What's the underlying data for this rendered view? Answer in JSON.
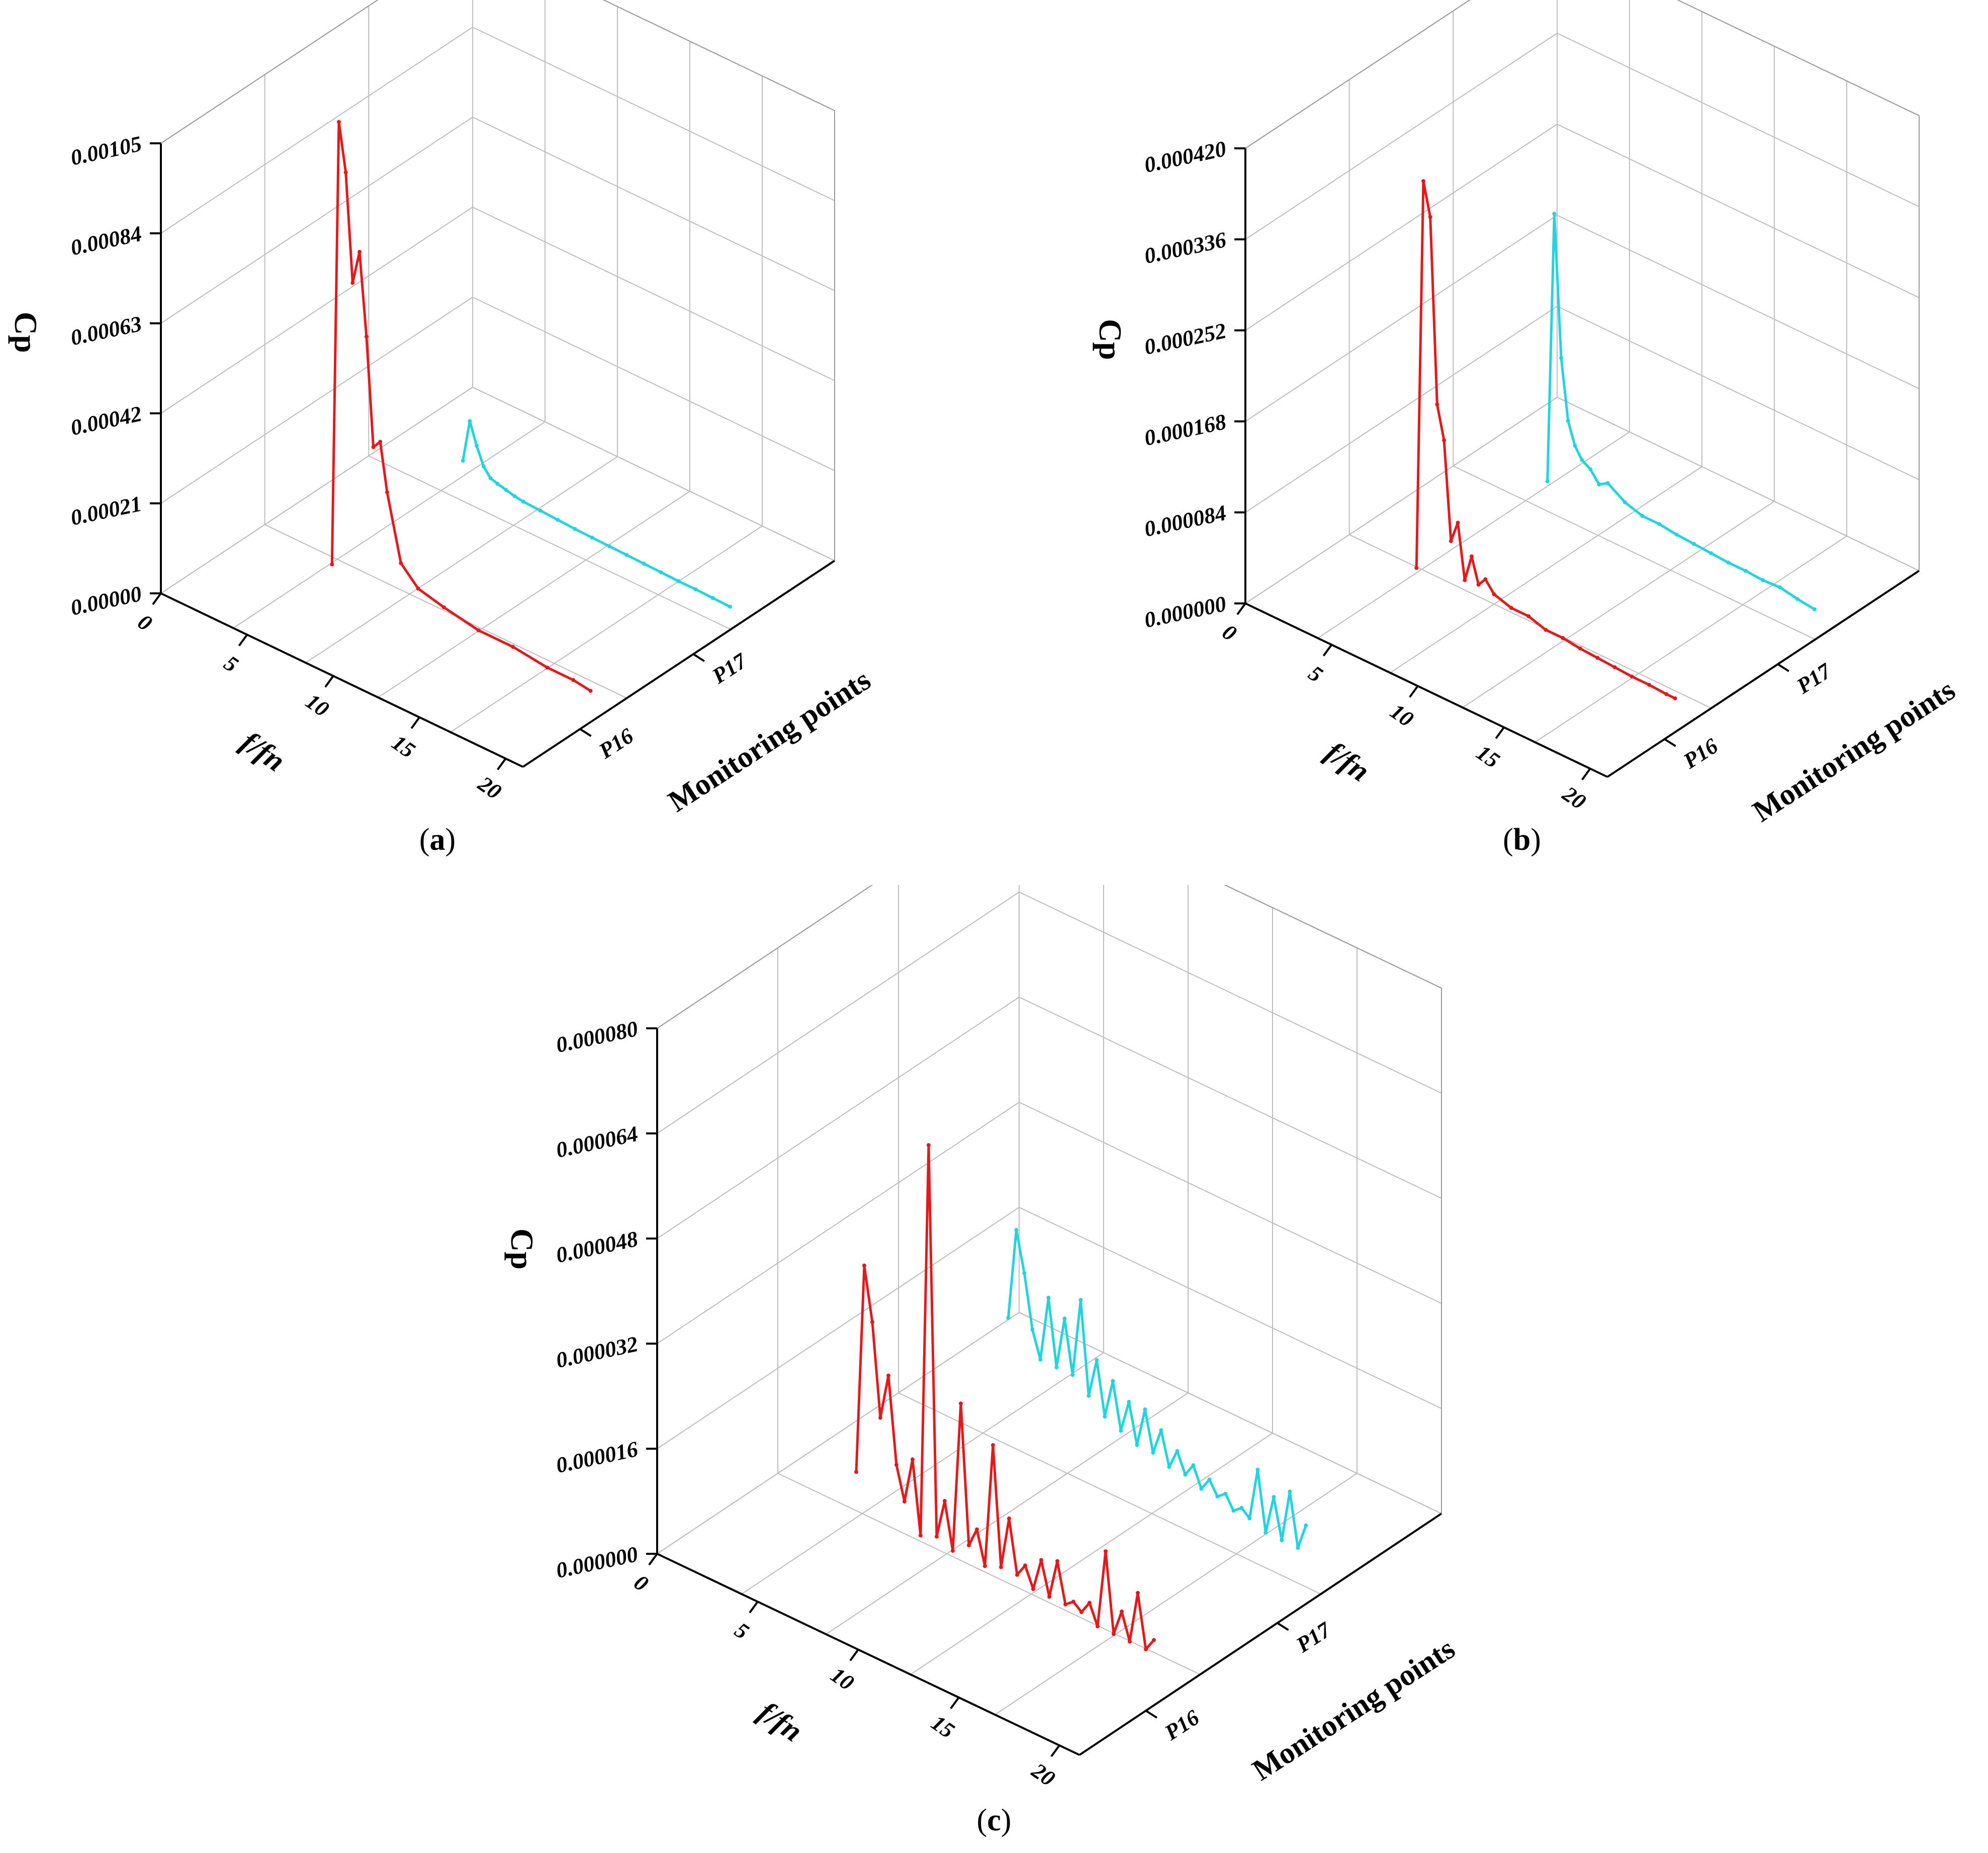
{
  "figure": {
    "panels": [
      {
        "id": "a",
        "caption": "a"
      },
      {
        "id": "b",
        "caption": "b"
      },
      {
        "id": "c",
        "caption": "c"
      }
    ],
    "paren_open": "(",
    "paren_close": ")"
  },
  "colors": {
    "P16": "#e31a1c",
    "P17": "#22d3e0",
    "grid": "#bdbdbd",
    "axis": "#000000"
  },
  "chart_data": [
    {
      "panel": "a",
      "type": "line",
      "title": "",
      "xlabel": "f/fn",
      "ylabel": "Cp",
      "zlabel": "Monitoring points",
      "categories": [
        "P16",
        "P17"
      ],
      "x_ticks": [
        "0",
        "5",
        "10",
        "15",
        "20"
      ],
      "y_ticks": [
        "0.00000",
        "0.00021",
        "0.00042",
        "0.00063",
        "0.00084",
        "0.00105"
      ],
      "xlim": [
        0,
        21
      ],
      "ylim": [
        0,
        0.00105
      ],
      "series": [
        {
          "name": "P16",
          "x": [
            4.5,
            4.9,
            5.3,
            5.7,
            6.1,
            6.5,
            6.9,
            7.3,
            7.7,
            8.5,
            9.5,
            11,
            13,
            15,
            17,
            18.5,
            19.5
          ],
          "values": [
            1e-05,
            0.00105,
            0.00094,
            0.00069,
            0.00077,
            0.00058,
            0.00033,
            0.00035,
            0.00024,
            9e-05,
            5e-05,
            3.5e-05,
            2e-05,
            2e-05,
            1e-05,
            1e-05,
            4e-06
          ]
        },
        {
          "name": "P17",
          "x": [
            4.5,
            4.9,
            5.3,
            5.7,
            6.1,
            6.5,
            7,
            7.5,
            8,
            9,
            10,
            11,
            12,
            13,
            14,
            15,
            16,
            17,
            18,
            19,
            20
          ],
          "values": [
            5e-05,
            0.00015,
            0.0001,
            6e-05,
            4e-05,
            3.5e-05,
            3e-05,
            2.5e-05,
            2.2e-05,
            2e-05,
            1.8e-05,
            1.6e-05,
            1.5e-05,
            1.4e-05,
            1.3e-05,
            1.2e-05,
            1.1e-05,
            1e-05,
            1e-05,
            9e-06,
            8e-06
          ]
        }
      ]
    },
    {
      "panel": "b",
      "type": "line",
      "title": "",
      "xlabel": "f/fn",
      "ylabel": "Cp",
      "zlabel": "Monitoring points",
      "categories": [
        "P16",
        "P17"
      ],
      "x_ticks": [
        "0",
        "5",
        "10",
        "15",
        "20"
      ],
      "y_ticks": [
        "0.000000",
        "0.000084",
        "0.000168",
        "0.000252",
        "0.000336",
        "0.000420"
      ],
      "xlim": [
        0,
        21
      ],
      "ylim": [
        0,
        0.00042
      ],
      "series": [
        {
          "name": "P16",
          "x": [
            4.5,
            4.9,
            5.3,
            5.7,
            6.1,
            6.5,
            6.9,
            7.3,
            7.7,
            8.1,
            8.5,
            9,
            10,
            11,
            12,
            13,
            14,
            15,
            16,
            17,
            18,
            19,
            19.5
          ],
          "values": [
            1e-05,
            0.00037,
            0.00034,
            0.00017,
            0.00014,
            5e-05,
            7e-05,
            2e-05,
            4.5e-05,
            2.2e-05,
            3e-05,
            2e-05,
            1.5e-05,
            1.5e-05,
            1e-05,
            1e-05,
            8e-06,
            7e-06,
            6e-06,
            5e-06,
            5e-06,
            4e-06,
            4e-06
          ]
        },
        {
          "name": "P17",
          "x": [
            4.5,
            4.9,
            5.3,
            5.7,
            6.1,
            6.5,
            7,
            7.5,
            8,
            9,
            10,
            11,
            12,
            13,
            14,
            15,
            16,
            17,
            18,
            19,
            20
          ],
          "values": [
            1e-05,
            0.00026,
            0.00013,
            7.5e-05,
            5.5e-05,
            4.5e-05,
            4e-05,
            3e-05,
            3.5e-05,
            2.5e-05,
            2e-05,
            2e-05,
            1.8e-05,
            1.7e-05,
            1.6e-05,
            1.5e-05,
            1.5e-05,
            1.4e-05,
            1.5e-05,
            1.2e-05,
            1e-05
          ]
        }
      ]
    },
    {
      "panel": "c",
      "type": "line",
      "title": "",
      "xlabel": "f/fn",
      "ylabel": "Cp",
      "zlabel": "Monitoring points",
      "categories": [
        "P16",
        "P17"
      ],
      "x_ticks": [
        "0",
        "5",
        "10",
        "15",
        "20"
      ],
      "y_ticks": [
        "0.000000",
        "0.000016",
        "0.000032",
        "0.000048",
        "0.000064",
        "0.000080"
      ],
      "xlim": [
        0,
        21
      ],
      "ylim": [
        0,
        8e-05
      ],
      "series": [
        {
          "name": "P16",
          "x": [
            4.5,
            4.9,
            5.3,
            5.7,
            6.1,
            6.5,
            6.9,
            7.3,
            7.7,
            8.1,
            8.5,
            8.9,
            9.3,
            9.7,
            10.1,
            10.5,
            10.9,
            11.3,
            11.7,
            12.1,
            12.5,
            12.9,
            13.3,
            13.7,
            14.1,
            14.5,
            14.9,
            15.3,
            15.7,
            16.1,
            16.5,
            16.9,
            17.3,
            17.7,
            18.1,
            18.5,
            18.9,
            19.3
          ],
          "values": [
            8e-06,
            4e-05,
            3.2e-05,
            1.8e-05,
            2.5e-05,
            1.2e-05,
            7e-06,
            1.4e-05,
            3e-06,
            6.3e-05,
            4e-06,
            1e-05,
            3e-06,
            2.6e-05,
            5e-06,
            8e-06,
            3e-06,
            2.2e-05,
            4e-06,
            1.2e-05,
            4e-06,
            6e-06,
            3e-06,
            8e-06,
            3e-06,
            9e-06,
            3e-06,
            4e-06,
            3e-06,
            5e-06,
            2e-06,
            1.4e-05,
            2e-06,
            6e-06,
            2e-06,
            1e-05,
            2e-06,
            4e-06
          ]
        },
        {
          "name": "P17",
          "x": [
            4.5,
            4.9,
            5.3,
            5.7,
            6.1,
            6.5,
            6.9,
            7.3,
            7.7,
            8.1,
            8.5,
            8.9,
            9.3,
            9.7,
            10.1,
            10.5,
            10.9,
            11.3,
            11.7,
            12.1,
            12.5,
            12.9,
            13.3,
            13.7,
            14.1,
            14.5,
            14.9,
            15.3,
            15.7,
            16.1,
            16.5,
            16.9,
            17.3,
            17.7,
            18.1,
            18.5,
            18.9,
            19.3
          ],
          "values": [
            1.6e-05,
            3e-05,
            2.4e-05,
            1.6e-05,
            1.2e-05,
            2.2e-05,
            1.2e-05,
            2e-05,
            1.2e-05,
            2.4e-05,
            1e-05,
            1.6e-05,
            8e-06,
            1.4e-05,
            7e-06,
            1.2e-05,
            6e-06,
            1.2e-05,
            6e-06,
            1e-05,
            5e-06,
            8e-06,
            5e-06,
            7e-06,
            4e-06,
            6e-06,
            4e-06,
            5e-06,
            3e-06,
            4e-06,
            3e-06,
            1.1e-05,
            2e-06,
            8e-06,
            2e-06,
            1e-05,
            2e-06,
            6e-06
          ]
        }
      ]
    }
  ]
}
